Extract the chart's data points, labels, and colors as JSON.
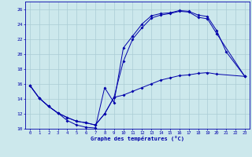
{
  "xlabel": "Graphe des températures (°C)",
  "bg_color": "#cce8ec",
  "line_color": "#0000aa",
  "grid_color": "#aaccd4",
  "xlim": [
    -0.5,
    23.5
  ],
  "ylim": [
    10,
    27
  ],
  "xticks": [
    0,
    1,
    2,
    3,
    4,
    5,
    6,
    7,
    8,
    9,
    10,
    11,
    12,
    13,
    14,
    15,
    16,
    17,
    18,
    19,
    20,
    21,
    22,
    23
  ],
  "yticks": [
    10,
    12,
    14,
    16,
    18,
    20,
    22,
    24,
    26
  ],
  "line1_x": [
    0,
    1,
    2,
    3,
    4,
    5,
    6,
    7,
    8,
    9,
    10,
    11,
    12,
    13,
    14,
    15,
    16,
    17,
    18,
    19,
    20,
    21,
    23
  ],
  "line1_y": [
    15.8,
    14.1,
    13.0,
    12.1,
    11.1,
    10.5,
    10.2,
    10.1,
    15.5,
    13.5,
    20.8,
    22.4,
    24.0,
    25.1,
    25.4,
    25.5,
    25.8,
    25.7,
    25.2,
    25.0,
    23.1,
    20.3,
    17.0
  ],
  "line2_x": [
    0,
    1,
    2,
    3,
    4,
    5,
    6,
    7,
    8,
    9,
    10,
    11,
    12,
    13,
    14,
    15,
    16,
    17,
    18,
    19,
    20,
    23
  ],
  "line2_y": [
    15.8,
    14.1,
    13.0,
    12.1,
    11.5,
    11.0,
    10.8,
    10.5,
    12.0,
    14.2,
    19.0,
    22.0,
    23.5,
    24.8,
    25.2,
    25.4,
    25.7,
    25.6,
    24.9,
    24.7,
    22.7,
    17.0
  ],
  "line3_x": [
    0,
    1,
    2,
    3,
    4,
    5,
    6,
    7,
    8,
    9,
    10,
    11,
    12,
    13,
    14,
    15,
    16,
    17,
    18,
    19,
    20,
    23
  ],
  "line3_y": [
    15.8,
    14.1,
    13.0,
    12.1,
    11.5,
    11.0,
    10.8,
    10.5,
    12.0,
    14.2,
    14.5,
    15.0,
    15.5,
    16.0,
    16.5,
    16.8,
    17.1,
    17.2,
    17.4,
    17.5,
    17.3,
    17.0
  ],
  "figsize": [
    3.2,
    2.0
  ],
  "dpi": 100
}
